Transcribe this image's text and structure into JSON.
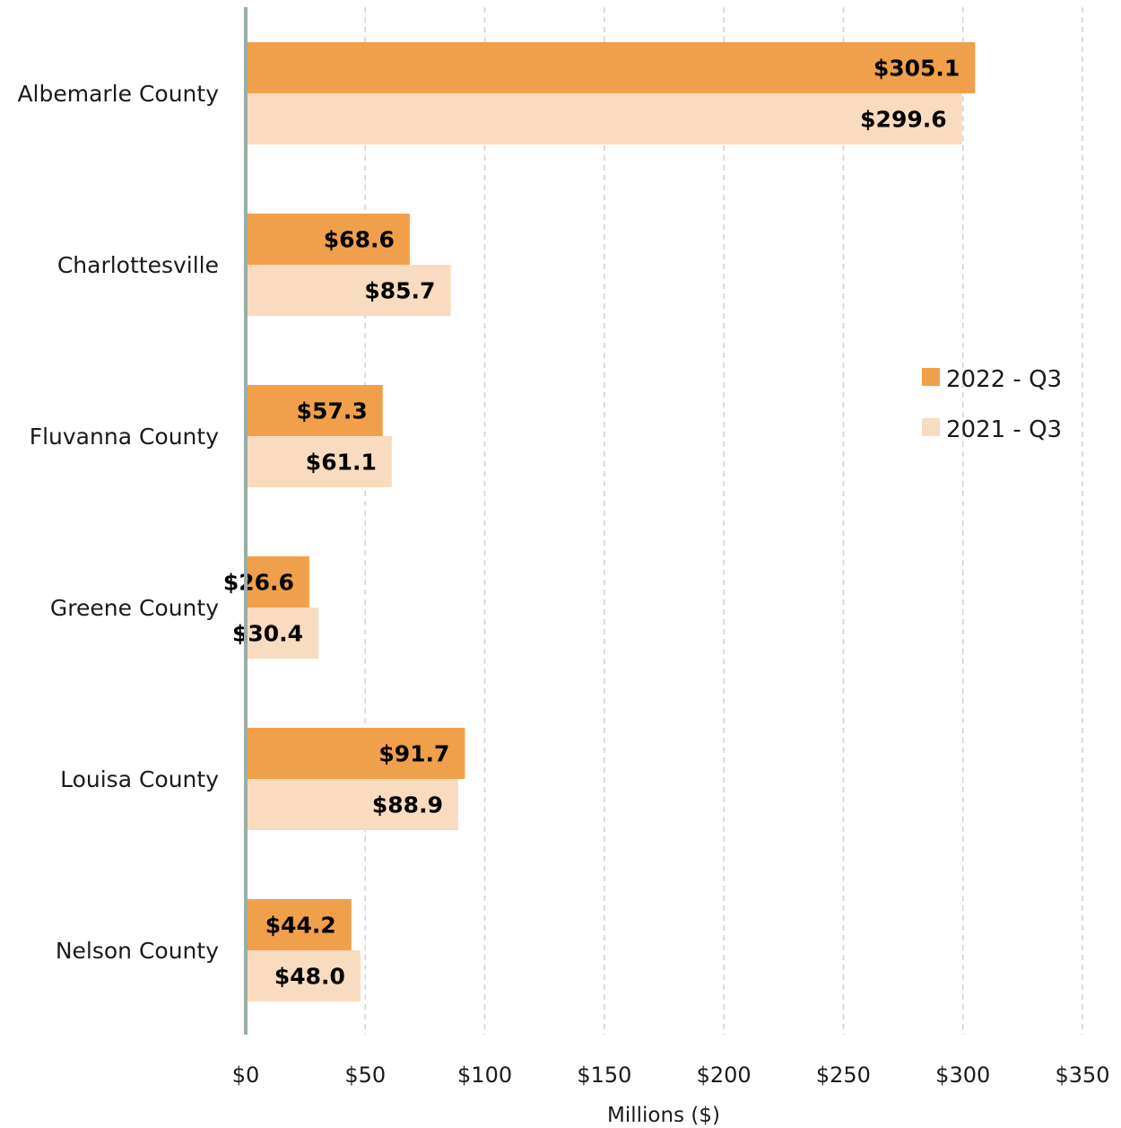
{
  "chart_data": {
    "type": "bar",
    "orientation": "horizontal",
    "categories": [
      "Albemarle County",
      "Charlottesville",
      "Fluvanna County",
      "Greene County",
      "Louisa County",
      "Nelson County"
    ],
    "series": [
      {
        "name": "2022 - Q3",
        "color": "#F0A04B",
        "values": [
          305.1,
          68.6,
          57.3,
          26.6,
          91.7,
          44.2
        ],
        "labels": [
          "$305.1",
          "$68.6",
          "$57.3",
          "$26.6",
          "$91.7",
          "$44.2"
        ]
      },
      {
        "name": "2021 - Q3",
        "color": "#F9DBC0",
        "values": [
          299.6,
          85.7,
          61.1,
          30.4,
          88.9,
          48.0
        ],
        "labels": [
          "$299.6",
          "$85.7",
          "$61.1",
          "$30.4",
          "$88.9",
          "$48.0"
        ]
      }
    ],
    "xlabel": "Millions ($)",
    "xlim": [
      0,
      350
    ],
    "xticks": [
      0,
      50,
      100,
      150,
      200,
      250,
      300,
      350
    ],
    "xtick_labels": [
      "$0",
      "$50",
      "$100",
      "$150",
      "$200",
      "$250",
      "$300",
      "$350"
    ],
    "grid": "vertical dashed",
    "legend_position": "right",
    "axis_color": "#9AADA3"
  }
}
